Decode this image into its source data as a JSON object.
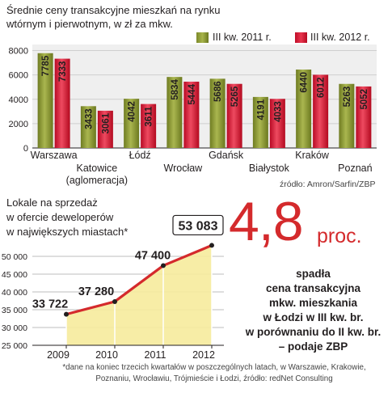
{
  "chart_data": [
    {
      "type": "bar",
      "title": "Średnie ceny transakcyjne mieszkań na rynku wtórnym i pierwotnym, w zł za mkw.",
      "categories": [
        "Warszawa",
        "Katowice (aglomeracja)",
        "Łódź",
        "Wrocław",
        "Gdańsk",
        "Białystok",
        "Kraków",
        "Poznań"
      ],
      "category_lines": [
        [
          "Warszawa"
        ],
        [
          "Katowice",
          "(aglomeracja)"
        ],
        [
          "Łódź"
        ],
        [
          "Wrocław"
        ],
        [
          "Gdańsk"
        ],
        [
          "Białystok"
        ],
        [
          "Kraków"
        ],
        [
          "Poznań"
        ]
      ],
      "series": [
        {
          "name": "III kw. 2011 r.",
          "values": [
            7785,
            3433,
            4042,
            5834,
            5686,
            4191,
            6440,
            5263
          ],
          "color": "#8f9c35"
        },
        {
          "name": "III kw. 2012 r.",
          "values": [
            7333,
            3061,
            3611,
            5444,
            5265,
            4033,
            6012,
            5052
          ],
          "color": "#d41f3a"
        }
      ],
      "yticks": [
        0,
        2000,
        4000,
        6000,
        8000
      ],
      "ylim": [
        0,
        8500
      ],
      "legend_position": "top-right",
      "grid": true,
      "source": "źródło: Amron/Sarfin/ZBP"
    },
    {
      "type": "line",
      "title_lines": [
        "Lokale na sprzedaż",
        "w ofercie deweloperów",
        "w największych miastach*"
      ],
      "x": [
        "2009",
        "2010",
        "2011",
        "2012"
      ],
      "y": [
        33722,
        37280,
        47400,
        53083
      ],
      "y_labels": [
        "33 722",
        "37 280",
        "47 400",
        "53 083"
      ],
      "yticks": [
        25000,
        30000,
        35000,
        40000,
        45000,
        50000
      ],
      "ytick_labels": [
        "25 000",
        "30 000",
        "35 000",
        "40 000",
        "45 000",
        "50 000"
      ],
      "ylim": [
        25000,
        55000
      ],
      "color": "#d42a2c",
      "fill": "#f6eb9c",
      "grid": true
    }
  ],
  "callout": {
    "big_number": "4,8",
    "unit": "proc.",
    "lines": [
      "spadła",
      "cena transakcyjna",
      "mkw. mieszkania",
      "w Łodzi  w III kw. br.",
      "w porównaniu do II kw. br.",
      "– podaje ZBP"
    ]
  },
  "footnote_lines": [
    "*dane na koniec trzecich kwartałów w poszczególnych latach, w Warszawie, Krakowie,",
    "Poznaniu, Wrocławiu, Trójmieście i Łodzi, źródło: redNet Consulting"
  ]
}
